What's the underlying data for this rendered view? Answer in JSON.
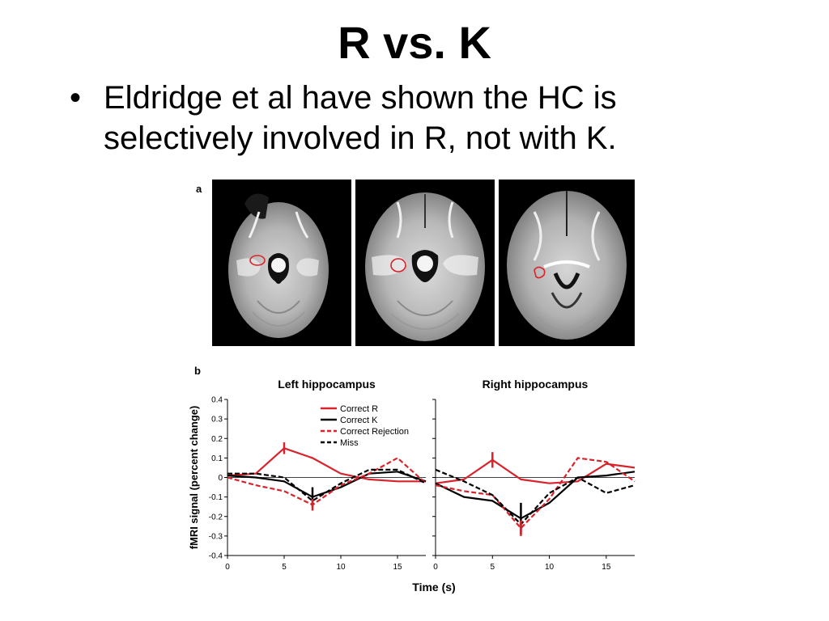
{
  "slide": {
    "title": "R vs. K",
    "bullet_marker": "•",
    "bullet_text": "Eldridge et al have shown the HC is selectively involved in R, not with K."
  },
  "panel_a": {
    "label": "a"
  },
  "panel_b": {
    "label": "b"
  },
  "colors": {
    "correct_r": "#d9232b",
    "correct_k": "#000000",
    "correct_rejection": "#d9232b",
    "miss": "#000000"
  },
  "chart_data": [
    {
      "type": "line",
      "title": "Left hippocampus",
      "ylabel": "fMRI signal (percent change)",
      "xlabel": "Time (s)",
      "xlim": [
        0,
        17.5
      ],
      "ylim": [
        -0.4,
        0.4
      ],
      "yticks": [
        "0.4",
        "0.3",
        "0.2",
        "0.1",
        "0",
        "-0.1",
        "-0.2",
        "-0.3",
        "-0.4"
      ],
      "xticks": [
        "0",
        "5",
        "10",
        "15"
      ],
      "legend": [
        "Correct R",
        "Correct K",
        "Correct Rejection",
        "Miss"
      ],
      "x": [
        0,
        2.5,
        5,
        7.5,
        10,
        12.5,
        15,
        17.5
      ],
      "series": [
        {
          "name": "Correct R",
          "style": "solid",
          "color": "#d9232b",
          "values": [
            0.01,
            0.02,
            0.15,
            0.1,
            0.02,
            -0.01,
            -0.02,
            -0.02
          ]
        },
        {
          "name": "Correct K",
          "style": "solid",
          "color": "#000000",
          "values": [
            0.01,
            0.0,
            -0.02,
            -0.1,
            -0.05,
            0.02,
            0.03,
            -0.02
          ]
        },
        {
          "name": "Correct Rejection",
          "style": "dashed",
          "color": "#d9232b",
          "values": [
            0.0,
            -0.04,
            -0.07,
            -0.14,
            -0.04,
            0.02,
            0.1,
            -0.03
          ]
        },
        {
          "name": "Miss",
          "style": "dashed",
          "color": "#000000",
          "values": [
            0.02,
            0.02,
            0.0,
            -0.12,
            -0.03,
            0.04,
            0.04,
            -0.03
          ]
        }
      ],
      "error_bars": [
        {
          "series": "Correct R",
          "x": 5,
          "y": 0.15,
          "err": 0.03
        },
        {
          "series": "Correct K",
          "x": 7.5,
          "y": -0.1,
          "err": 0.05
        },
        {
          "series": "Correct Rejection",
          "x": 7.5,
          "y": -0.14,
          "err": 0.03
        }
      ]
    },
    {
      "type": "line",
      "title": "Right hippocampus",
      "xlabel": "Time (s)",
      "xlim": [
        0,
        17.5
      ],
      "ylim": [
        -0.4,
        0.4
      ],
      "xticks": [
        "0",
        "5",
        "10",
        "15"
      ],
      "x": [
        0,
        2.5,
        5,
        7.5,
        10,
        12.5,
        15,
        17.5
      ],
      "series": [
        {
          "name": "Correct R",
          "style": "solid",
          "color": "#d9232b",
          "values": [
            -0.03,
            -0.01,
            0.09,
            -0.01,
            -0.03,
            -0.02,
            0.07,
            0.05
          ]
        },
        {
          "name": "Correct K",
          "style": "solid",
          "color": "#000000",
          "values": [
            -0.03,
            -0.1,
            -0.12,
            -0.21,
            -0.13,
            0.0,
            0.01,
            0.03
          ]
        },
        {
          "name": "Correct Rejection",
          "style": "dashed",
          "color": "#d9232b",
          "values": [
            -0.04,
            -0.07,
            -0.09,
            -0.26,
            -0.11,
            0.1,
            0.08,
            -0.02
          ]
        },
        {
          "name": "Miss",
          "style": "dashed",
          "color": "#000000",
          "values": [
            0.04,
            -0.02,
            -0.09,
            -0.24,
            -0.08,
            0.0,
            -0.08,
            -0.04
          ]
        }
      ],
      "error_bars": [
        {
          "series": "Correct R",
          "x": 5,
          "y": 0.09,
          "err": 0.04
        },
        {
          "series": "Correct K",
          "x": 7.5,
          "y": -0.21,
          "err": 0.08
        },
        {
          "series": "Correct Rejection",
          "x": 7.5,
          "y": -0.26,
          "err": 0.04
        }
      ]
    }
  ]
}
